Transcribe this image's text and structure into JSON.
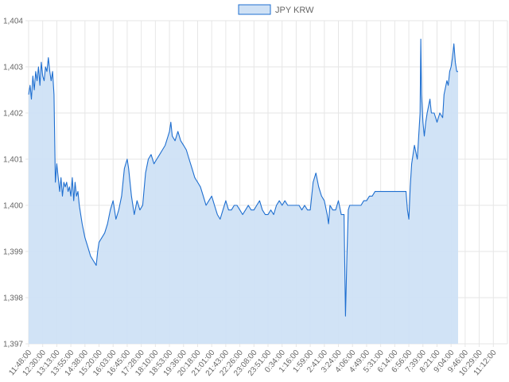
{
  "chart_data": {
    "type": "area",
    "title": "",
    "xlabel": "",
    "ylabel": "",
    "legend": {
      "position": "top",
      "entries": [
        "JPY KRW"
      ]
    },
    "grid": true,
    "colors": {
      "line": "#1f6fd0",
      "fill": "#cfe1f5",
      "grid": "#e6e6e6"
    },
    "ylim": [
      1397,
      1404
    ],
    "y_ticks": [
      {
        "value": 1397,
        "label": "1,397"
      },
      {
        "value": 1398,
        "label": "1,398"
      },
      {
        "value": 1399,
        "label": "1,399"
      },
      {
        "value": 1400,
        "label": "1,400"
      },
      {
        "value": 1401,
        "label": "1,401"
      },
      {
        "value": 1402,
        "label": "1,402"
      },
      {
        "value": 1403,
        "label": "1,403"
      },
      {
        "value": 1404,
        "label": "1,404"
      }
    ],
    "x_ticks": [
      "11:48:00",
      "12:30:00",
      "13:13:00",
      "13:55:00",
      "14:38:00",
      "15:20:00",
      "16:03:00",
      "16:45:00",
      "17:28:00",
      "18:10:00",
      "18:53:00",
      "19:36:00",
      "20:18:00",
      "21:01:00",
      "21:43:00",
      "22:26:00",
      "23:08:00",
      "23:51:00",
      "0:34:00",
      "1:16:00",
      "1:59:00",
      "2:41:00",
      "3:24:00",
      "4:06:00",
      "4:49:00",
      "5:31:00",
      "6:14:00",
      "6:56:00",
      "7:39:00",
      "8:21:00",
      "9:04:00",
      "9:46:00",
      "10:29:00",
      "11:12:00"
    ],
    "series": [
      {
        "name": "JPY KRW",
        "points": [
          [
            0,
            1402.4
          ],
          [
            0.1,
            1402.6
          ],
          [
            0.2,
            1402.3
          ],
          [
            0.3,
            1402.8
          ],
          [
            0.4,
            1402.5
          ],
          [
            0.5,
            1402.9
          ],
          [
            0.6,
            1402.7
          ],
          [
            0.7,
            1403.0
          ],
          [
            0.8,
            1402.6
          ],
          [
            0.9,
            1403.1
          ],
          [
            1.0,
            1402.8
          ],
          [
            1.1,
            1402.7
          ],
          [
            1.2,
            1403.0
          ],
          [
            1.3,
            1402.9
          ],
          [
            1.4,
            1403.2
          ],
          [
            1.5,
            1402.9
          ],
          [
            1.6,
            1402.7
          ],
          [
            1.7,
            1402.9
          ],
          [
            1.8,
            1402.4
          ],
          [
            1.9,
            1400.5
          ],
          [
            2.0,
            1400.9
          ],
          [
            2.1,
            1400.6
          ],
          [
            2.2,
            1400.3
          ],
          [
            2.3,
            1400.6
          ],
          [
            2.4,
            1400.2
          ],
          [
            2.5,
            1400.5
          ],
          [
            2.6,
            1400.4
          ],
          [
            2.7,
            1400.5
          ],
          [
            2.8,
            1400.3
          ],
          [
            2.9,
            1400.4
          ],
          [
            3.0,
            1400.2
          ],
          [
            3.1,
            1400.6
          ],
          [
            3.2,
            1400.1
          ],
          [
            3.3,
            1400.5
          ],
          [
            3.4,
            1400.2
          ],
          [
            3.5,
            1400.3
          ],
          [
            3.6,
            1400.0
          ],
          [
            3.8,
            1399.6
          ],
          [
            4.0,
            1399.3
          ],
          [
            4.2,
            1399.1
          ],
          [
            4.4,
            1398.9
          ],
          [
            4.6,
            1398.8
          ],
          [
            4.8,
            1398.7
          ],
          [
            4.9,
            1399.0
          ],
          [
            5.0,
            1399.2
          ],
          [
            5.2,
            1399.3
          ],
          [
            5.4,
            1399.4
          ],
          [
            5.6,
            1399.6
          ],
          [
            5.8,
            1399.9
          ],
          [
            6.0,
            1400.1
          ],
          [
            6.2,
            1399.7
          ],
          [
            6.4,
            1399.9
          ],
          [
            6.6,
            1400.2
          ],
          [
            6.8,
            1400.8
          ],
          [
            7.0,
            1401.0
          ],
          [
            7.1,
            1400.8
          ],
          [
            7.3,
            1400.2
          ],
          [
            7.5,
            1399.8
          ],
          [
            7.7,
            1400.1
          ],
          [
            7.9,
            1399.9
          ],
          [
            8.1,
            1400.0
          ],
          [
            8.3,
            1400.7
          ],
          [
            8.5,
            1401.0
          ],
          [
            8.7,
            1401.1
          ],
          [
            8.9,
            1400.9
          ],
          [
            9.1,
            1401.0
          ],
          [
            9.3,
            1401.1
          ],
          [
            9.5,
            1401.2
          ],
          [
            9.7,
            1401.3
          ],
          [
            9.9,
            1401.5
          ],
          [
            10.0,
            1401.6
          ],
          [
            10.1,
            1401.8
          ],
          [
            10.2,
            1401.5
          ],
          [
            10.4,
            1401.4
          ],
          [
            10.6,
            1401.6
          ],
          [
            10.8,
            1401.4
          ],
          [
            11.0,
            1401.3
          ],
          [
            11.2,
            1401.2
          ],
          [
            11.4,
            1401.0
          ],
          [
            11.6,
            1400.8
          ],
          [
            11.8,
            1400.6
          ],
          [
            12.0,
            1400.5
          ],
          [
            12.2,
            1400.4
          ],
          [
            12.4,
            1400.2
          ],
          [
            12.6,
            1400.0
          ],
          [
            12.8,
            1400.1
          ],
          [
            13.0,
            1400.2
          ],
          [
            13.2,
            1400.0
          ],
          [
            13.4,
            1399.8
          ],
          [
            13.6,
            1399.7
          ],
          [
            13.8,
            1399.9
          ],
          [
            14.0,
            1400.1
          ],
          [
            14.2,
            1399.9
          ],
          [
            14.4,
            1399.9
          ],
          [
            14.6,
            1400.0
          ],
          [
            14.8,
            1400.0
          ],
          [
            15.0,
            1399.9
          ],
          [
            15.2,
            1399.8
          ],
          [
            15.4,
            1399.9
          ],
          [
            15.6,
            1400.0
          ],
          [
            15.8,
            1399.9
          ],
          [
            16.0,
            1399.9
          ],
          [
            16.2,
            1400.0
          ],
          [
            16.4,
            1400.1
          ],
          [
            16.6,
            1399.9
          ],
          [
            16.8,
            1399.8
          ],
          [
            17.0,
            1399.8
          ],
          [
            17.2,
            1399.9
          ],
          [
            17.4,
            1399.8
          ],
          [
            17.6,
            1400.0
          ],
          [
            17.8,
            1400.1
          ],
          [
            18.0,
            1400.0
          ],
          [
            18.2,
            1400.1
          ],
          [
            18.4,
            1400.0
          ],
          [
            18.6,
            1400.0
          ],
          [
            18.8,
            1400.0
          ],
          [
            19.0,
            1400.0
          ],
          [
            19.2,
            1400.0
          ],
          [
            19.4,
            1399.9
          ],
          [
            19.6,
            1400.0
          ],
          [
            19.8,
            1399.9
          ],
          [
            20.0,
            1399.9
          ],
          [
            20.2,
            1400.5
          ],
          [
            20.4,
            1400.7
          ],
          [
            20.6,
            1400.4
          ],
          [
            20.8,
            1400.2
          ],
          [
            21.0,
            1400.1
          ],
          [
            21.2,
            1399.8
          ],
          [
            21.3,
            1399.6
          ],
          [
            21.4,
            1400.0
          ],
          [
            21.6,
            1399.9
          ],
          [
            21.8,
            1399.9
          ],
          [
            22.0,
            1400.1
          ],
          [
            22.2,
            1399.8
          ],
          [
            22.4,
            1399.8
          ],
          [
            22.5,
            1397.6
          ],
          [
            22.6,
            1398.9
          ],
          [
            22.7,
            1399.9
          ],
          [
            22.8,
            1400.0
          ],
          [
            23.0,
            1400.0
          ],
          [
            23.2,
            1400.0
          ],
          [
            23.4,
            1400.0
          ],
          [
            23.6,
            1400.0
          ],
          [
            23.8,
            1400.1
          ],
          [
            24.0,
            1400.1
          ],
          [
            24.2,
            1400.2
          ],
          [
            24.4,
            1400.2
          ],
          [
            24.6,
            1400.3
          ],
          [
            24.8,
            1400.3
          ],
          [
            25.0,
            1400.3
          ],
          [
            25.2,
            1400.3
          ],
          [
            25.4,
            1400.3
          ],
          [
            25.6,
            1400.3
          ],
          [
            25.8,
            1400.3
          ],
          [
            26.0,
            1400.3
          ],
          [
            26.2,
            1400.3
          ],
          [
            26.4,
            1400.3
          ],
          [
            26.6,
            1400.3
          ],
          [
            26.8,
            1400.3
          ],
          [
            26.9,
            1399.9
          ],
          [
            27.0,
            1399.7
          ],
          [
            27.1,
            1400.4
          ],
          [
            27.2,
            1400.9
          ],
          [
            27.4,
            1401.3
          ],
          [
            27.6,
            1401.0
          ],
          [
            27.8,
            1402.0
          ],
          [
            27.85,
            1403.6
          ],
          [
            27.9,
            1402.4
          ],
          [
            28.0,
            1401.8
          ],
          [
            28.1,
            1401.5
          ],
          [
            28.2,
            1401.8
          ],
          [
            28.3,
            1402.0
          ],
          [
            28.5,
            1402.3
          ],
          [
            28.6,
            1402.0
          ],
          [
            28.8,
            1402.0
          ],
          [
            29.0,
            1401.8
          ],
          [
            29.2,
            1402.0
          ],
          [
            29.4,
            1401.9
          ],
          [
            29.5,
            1402.4
          ],
          [
            29.7,
            1402.7
          ],
          [
            29.8,
            1402.6
          ],
          [
            29.9,
            1402.9
          ],
          [
            30.0,
            1403.0
          ],
          [
            30.1,
            1403.2
          ],
          [
            30.2,
            1403.5
          ],
          [
            30.3,
            1403.1
          ],
          [
            30.4,
            1402.9
          ],
          [
            30.5,
            1402.9
          ]
        ]
      }
    ]
  }
}
